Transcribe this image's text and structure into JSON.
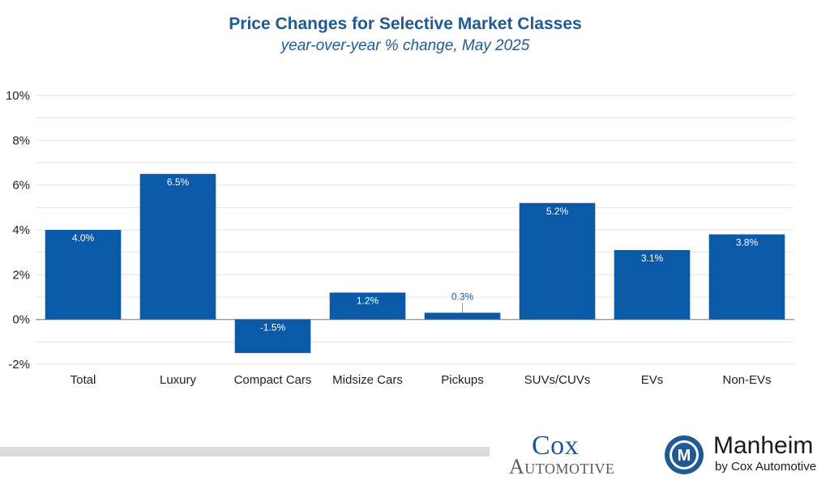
{
  "chart_data": {
    "type": "bar",
    "title": "Price Changes for Selective Market Classes",
    "subtitle": "year-over-year % change, May 2025",
    "categories": [
      "Total",
      "Luxury",
      "Compact Cars",
      "Midsize Cars",
      "Pickups",
      "SUVs/CUVs",
      "EVs",
      "Non-EVs"
    ],
    "values": [
      4.0,
      6.5,
      -1.5,
      1.2,
      0.3,
      5.2,
      3.1,
      3.8
    ],
    "data_labels": [
      "4.0%",
      "6.5%",
      "-1.5%",
      "1.2%",
      "0.3%",
      "5.2%",
      "3.1%",
      "3.8%"
    ],
    "y_ticks": [
      10,
      8,
      6,
      4,
      2,
      0,
      -2
    ],
    "y_tick_labels": [
      "10%",
      "8%",
      "6%",
      "4%",
      "2%",
      "0%",
      "-2%"
    ],
    "ylim": [
      -2,
      10
    ],
    "grid": true,
    "xlabel": "",
    "ylabel": "",
    "bar_color": "#0b5aa8"
  },
  "branding": {
    "cox_line1": "Cox",
    "cox_line2": "Automotive",
    "manheim_mark": "M",
    "manheim_name": "Manheim",
    "manheim_tagline": "by Cox Automotive"
  }
}
